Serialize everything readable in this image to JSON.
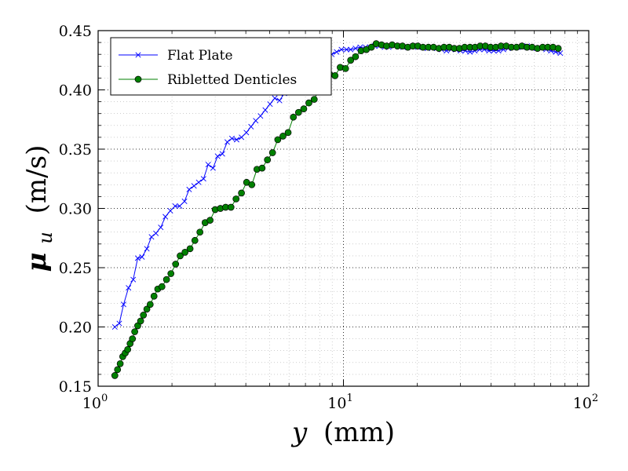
{
  "chart_data": {
    "type": "line",
    "x_scale": "log",
    "xlim": [
      1,
      100
    ],
    "ylim": [
      0.15,
      0.45
    ],
    "grid": true,
    "legend_position": "top-left",
    "xlabel": {
      "symbol": "y",
      "unit": "(mm)"
    },
    "ylabel": {
      "symbol": "μ",
      "subscript": "u",
      "unit": "(m/s)"
    },
    "x_ticks": [
      {
        "value": 1,
        "base": "10",
        "exp": "0"
      },
      {
        "value": 10,
        "base": "10",
        "exp": "1"
      },
      {
        "value": 100,
        "base": "10",
        "exp": "2"
      }
    ],
    "y_ticks": [
      "0.15",
      "0.20",
      "0.25",
      "0.30",
      "0.35",
      "0.40",
      "0.45"
    ],
    "series": [
      {
        "name": "Flat Plate",
        "color": "#0000ff",
        "marker": "x",
        "x": [
          1.17,
          1.22,
          1.27,
          1.33,
          1.39,
          1.45,
          1.51,
          1.58,
          1.65,
          1.72,
          1.8,
          1.88,
          1.97,
          2.06,
          2.15,
          2.25,
          2.35,
          2.46,
          2.57,
          2.69,
          2.81,
          2.94,
          3.07,
          3.21,
          3.36,
          3.51,
          3.67,
          3.84,
          4.02,
          4.2,
          4.39,
          4.59,
          4.8,
          5.02,
          5.25,
          5.49,
          5.74,
          6.0,
          6.28,
          6.56,
          6.86,
          7.18,
          7.5,
          7.85,
          8.2,
          8.58,
          8.97,
          9.38,
          9.81,
          10.3,
          10.7,
          11.2,
          11.7,
          12.3,
          12.8,
          13.4,
          14.0,
          14.7,
          15.3,
          16.0,
          16.8,
          17.5,
          18.3,
          19.2,
          20.1,
          21.0,
          22.0,
          23.0,
          24.0,
          25.1,
          26.3,
          27.5,
          28.7,
          30.0,
          31.4,
          32.8,
          34.3,
          35.9,
          37.5,
          39.2,
          41.0,
          42.9,
          44.9,
          46.9,
          49.0,
          51.3,
          53.6,
          56.1,
          58.6,
          61.3,
          64.1,
          67.0,
          70.1,
          73.3,
          76.6
        ],
        "y": [
          0.2,
          0.203,
          0.219,
          0.233,
          0.24,
          0.258,
          0.259,
          0.266,
          0.276,
          0.279,
          0.284,
          0.293,
          0.298,
          0.302,
          0.302,
          0.306,
          0.316,
          0.319,
          0.322,
          0.325,
          0.337,
          0.334,
          0.344,
          0.346,
          0.356,
          0.359,
          0.358,
          0.36,
          0.364,
          0.369,
          0.374,
          0.378,
          0.383,
          0.388,
          0.393,
          0.391,
          0.397,
          0.404,
          0.405,
          0.411,
          0.414,
          0.418,
          0.42,
          0.421,
          0.425,
          0.427,
          0.43,
          0.432,
          0.434,
          0.434,
          0.434,
          0.435,
          0.436,
          0.436,
          0.436,
          0.437,
          0.437,
          0.436,
          0.436,
          0.437,
          0.437,
          0.436,
          0.436,
          0.437,
          0.436,
          0.436,
          0.435,
          0.436,
          0.435,
          0.434,
          0.433,
          0.434,
          0.434,
          0.433,
          0.433,
          0.432,
          0.433,
          0.434,
          0.434,
          0.433,
          0.433,
          0.433,
          0.434,
          0.435,
          0.436,
          0.436,
          0.436,
          0.437,
          0.436,
          0.435,
          0.435,
          0.434,
          0.433,
          0.432,
          0.431
        ]
      },
      {
        "name": "Ribletted Denticles",
        "color": "#008000",
        "marker": "o",
        "x": [
          1.17,
          1.2,
          1.23,
          1.26,
          1.29,
          1.32,
          1.35,
          1.38,
          1.41,
          1.45,
          1.49,
          1.53,
          1.58,
          1.63,
          1.69,
          1.75,
          1.82,
          1.9,
          1.98,
          2.07,
          2.16,
          2.26,
          2.37,
          2.48,
          2.6,
          2.73,
          2.86,
          3.0,
          3.15,
          3.31,
          3.48,
          3.65,
          3.84,
          4.03,
          4.23,
          4.44,
          4.66,
          4.9,
          5.14,
          5.4,
          5.67,
          5.95,
          6.25,
          6.56,
          6.89,
          7.23,
          7.6,
          7.98,
          8.38,
          8.8,
          9.24,
          9.7,
          10.2,
          10.7,
          11.2,
          11.8,
          12.4,
          13.0,
          13.6,
          14.3,
          15.0,
          15.8,
          16.6,
          17.4,
          18.3,
          19.2,
          20.1,
          21.1,
          22.2,
          23.3,
          24.5,
          25.7,
          27.0,
          28.3,
          29.7,
          31.2,
          32.8,
          34.4,
          36.1,
          37.9,
          39.8,
          41.8,
          43.9,
          46.1,
          48.4,
          50.8,
          53.4,
          56.0,
          58.8,
          61.8,
          64.9,
          68.1,
          71.5,
          75.1
        ],
        "y": [
          0.159,
          0.164,
          0.169,
          0.175,
          0.178,
          0.181,
          0.186,
          0.19,
          0.196,
          0.201,
          0.205,
          0.21,
          0.215,
          0.219,
          0.226,
          0.232,
          0.234,
          0.24,
          0.245,
          0.253,
          0.26,
          0.263,
          0.266,
          0.273,
          0.28,
          0.288,
          0.29,
          0.299,
          0.3,
          0.301,
          0.301,
          0.308,
          0.313,
          0.322,
          0.32,
          0.333,
          0.334,
          0.341,
          0.347,
          0.358,
          0.361,
          0.364,
          0.377,
          0.381,
          0.384,
          0.389,
          0.392,
          0.401,
          0.402,
          0.413,
          0.412,
          0.419,
          0.418,
          0.425,
          0.428,
          0.433,
          0.434,
          0.436,
          0.439,
          0.438,
          0.437,
          0.438,
          0.437,
          0.437,
          0.436,
          0.437,
          0.437,
          0.436,
          0.436,
          0.436,
          0.435,
          0.436,
          0.436,
          0.435,
          0.435,
          0.436,
          0.436,
          0.436,
          0.437,
          0.437,
          0.436,
          0.436,
          0.437,
          0.437,
          0.436,
          0.436,
          0.437,
          0.436,
          0.436,
          0.435,
          0.436,
          0.436,
          0.436,
          0.435
        ]
      }
    ]
  }
}
